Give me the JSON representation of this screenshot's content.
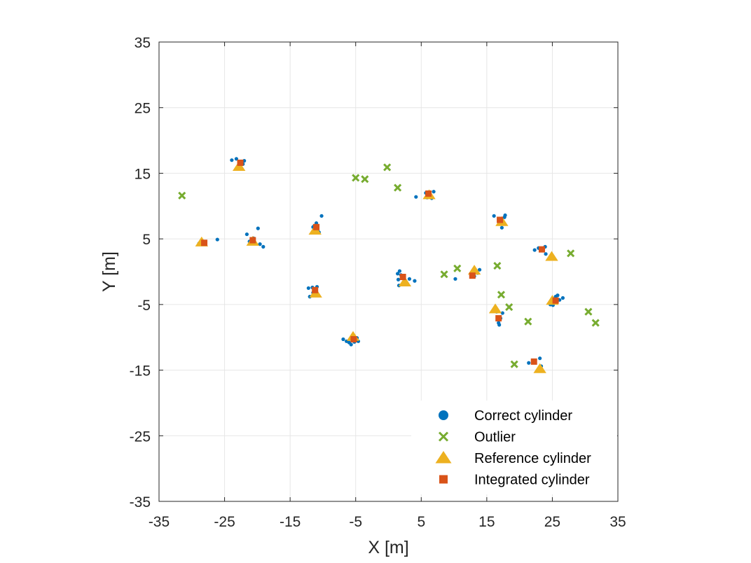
{
  "chart_data": {
    "type": "scatter",
    "title": "",
    "xlabel": "X [m]",
    "ylabel": "Y [m]",
    "xlim": [
      -35,
      35
    ],
    "ylim": [
      -35,
      35
    ],
    "xticks": [
      "-35",
      "-25",
      "-15",
      "-5",
      "5",
      "15",
      "25",
      "35"
    ],
    "yticks": [
      "35",
      "25",
      "15",
      "5",
      "-5",
      "-15",
      "-25",
      "-35"
    ],
    "grid": true,
    "legend_position": "bottom-right",
    "colors": {
      "correct": "#0072BD",
      "outlier": "#77AC30",
      "reference": "#EDB120",
      "integrated": "#D95319"
    },
    "series": [
      {
        "name": "Correct cylinder",
        "marker": "circle",
        "points": [
          [
            -23.9,
            17.0
          ],
          [
            -23.2,
            17.2
          ],
          [
            -22.6,
            16.8
          ],
          [
            -22.2,
            16.4
          ],
          [
            -22.0,
            16.9
          ],
          [
            -28.6,
            4.4
          ],
          [
            -28.3,
            4.6
          ],
          [
            -28.9,
            4.3
          ],
          [
            -26.1,
            4.9
          ],
          [
            -21.6,
            5.7
          ],
          [
            -20.6,
            5.1
          ],
          [
            -19.9,
            6.6
          ],
          [
            -19.6,
            4.2
          ],
          [
            -19.1,
            3.8
          ],
          [
            -21.2,
            4.6
          ],
          [
            -11.3,
            7.0
          ],
          [
            -11.0,
            7.4
          ],
          [
            -10.8,
            6.4
          ],
          [
            -10.6,
            6.0
          ],
          [
            -10.2,
            8.5
          ],
          [
            -11.5,
            6.8
          ],
          [
            -12.2,
            -2.5
          ],
          [
            -11.6,
            -2.4
          ],
          [
            -11.1,
            -2.6
          ],
          [
            -10.9,
            -2.3
          ],
          [
            -11.5,
            -3.2
          ],
          [
            -12.0,
            -3.8
          ],
          [
            -11.3,
            -3.0
          ],
          [
            -6.9,
            -10.3
          ],
          [
            -6.4,
            -10.6
          ],
          [
            -5.7,
            -11.1
          ],
          [
            -5.2,
            -10.7
          ],
          [
            -4.8,
            -10.1
          ],
          [
            -4.6,
            -10.6
          ],
          [
            -6.0,
            -10.8
          ],
          [
            1.4,
            -0.3
          ],
          [
            1.7,
            0.1
          ],
          [
            1.9,
            -0.5
          ],
          [
            2.2,
            -1.0
          ],
          [
            3.2,
            -1.1
          ],
          [
            4.0,
            -1.4
          ],
          [
            1.5,
            -1.2
          ],
          [
            1.6,
            -2.1
          ],
          [
            4.2,
            11.4
          ],
          [
            5.7,
            12.0
          ],
          [
            6.1,
            11.6
          ],
          [
            6.6,
            11.2
          ],
          [
            6.9,
            12.2
          ],
          [
            5.9,
            11.3
          ],
          [
            10.2,
            -1.1
          ],
          [
            12.6,
            -0.6
          ],
          [
            13.1,
            -0.7
          ],
          [
            13.6,
            -0.2
          ],
          [
            13.9,
            0.3
          ],
          [
            12.9,
            -0.4
          ],
          [
            16.1,
            8.5
          ],
          [
            17.3,
            6.7
          ],
          [
            17.7,
            8.3
          ],
          [
            17.8,
            8.6
          ],
          [
            16.8,
            8.0
          ],
          [
            16.5,
            -6.1
          ],
          [
            16.8,
            -7.8
          ],
          [
            16.9,
            -8.1
          ],
          [
            17.4,
            -6.3
          ],
          [
            17.1,
            -7.1
          ],
          [
            22.3,
            3.3
          ],
          [
            22.9,
            3.6
          ],
          [
            23.3,
            3.5
          ],
          [
            23.9,
            3.8
          ],
          [
            24.0,
            2.7
          ],
          [
            24.7,
            -5.0
          ],
          [
            25.2,
            -4.7
          ],
          [
            25.5,
            -3.8
          ],
          [
            25.8,
            -3.6
          ],
          [
            26.1,
            -4.3
          ],
          [
            26.6,
            -4.0
          ],
          [
            25.1,
            -5.1
          ],
          [
            21.4,
            -13.9
          ],
          [
            22.3,
            -13.7
          ],
          [
            23.1,
            -13.2
          ],
          [
            23.3,
            -14.4
          ]
        ]
      },
      {
        "name": "Outlier",
        "marker": "x",
        "points": [
          [
            -31.5,
            11.6
          ],
          [
            -5.0,
            14.3
          ],
          [
            -3.6,
            14.1
          ],
          [
            -0.2,
            15.9
          ],
          [
            1.4,
            12.8
          ],
          [
            8.5,
            -0.4
          ],
          [
            10.5,
            0.5
          ],
          [
            16.6,
            0.9
          ],
          [
            17.2,
            -3.5
          ],
          [
            18.4,
            -5.4
          ],
          [
            21.3,
            -7.6
          ],
          [
            19.2,
            -14.1
          ],
          [
            27.8,
            2.8
          ],
          [
            30.5,
            -6.1
          ],
          [
            31.6,
            -7.8
          ]
        ]
      },
      {
        "name": "Reference cylinder",
        "marker": "triangle",
        "points": [
          [
            -22.8,
            16.0
          ],
          [
            -28.5,
            4.5
          ],
          [
            -20.7,
            4.6
          ],
          [
            -11.2,
            6.3
          ],
          [
            -11.1,
            -3.3
          ],
          [
            -5.4,
            -9.9
          ],
          [
            2.5,
            -1.6
          ],
          [
            6.2,
            11.7
          ],
          [
            13.1,
            0.2
          ],
          [
            17.3,
            7.6
          ],
          [
            16.3,
            -5.7
          ],
          [
            24.9,
            2.3
          ],
          [
            25.0,
            -4.4
          ],
          [
            23.1,
            -14.8
          ]
        ]
      },
      {
        "name": "Integrated cylinder",
        "marker": "square",
        "points": [
          [
            -22.6,
            16.6
          ],
          [
            -28.1,
            4.4
          ],
          [
            -20.7,
            4.8
          ],
          [
            -11.0,
            6.8
          ],
          [
            -11.2,
            -2.8
          ],
          [
            -5.3,
            -10.3
          ],
          [
            2.2,
            -0.8
          ],
          [
            6.1,
            11.9
          ],
          [
            12.8,
            -0.6
          ],
          [
            17.0,
            7.9
          ],
          [
            16.8,
            -7.1
          ],
          [
            23.4,
            3.4
          ],
          [
            25.5,
            -4.4
          ],
          [
            22.2,
            -13.7
          ]
        ]
      }
    ]
  }
}
